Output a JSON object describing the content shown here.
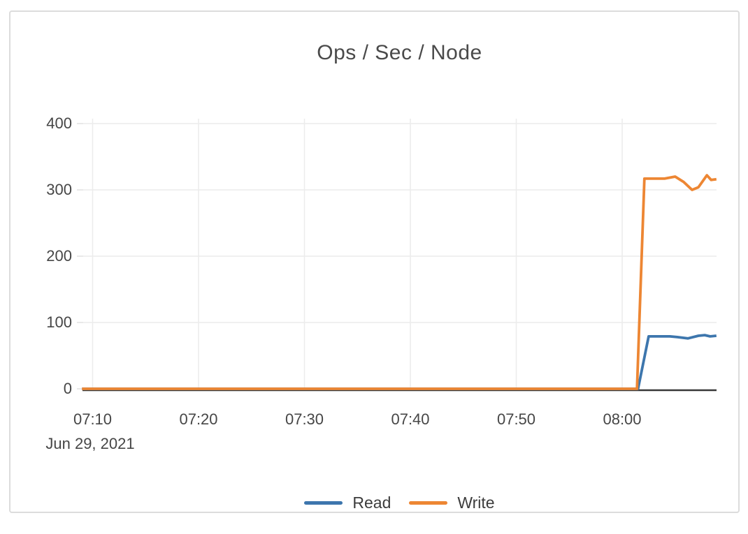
{
  "chart": {
    "title": "Ops / Sec / Node"
  },
  "chart_data": {
    "type": "line",
    "title": "Ops / Sec / Node",
    "x_axis": {
      "unit": "minutes since 07:00",
      "date_label": "Jun 29, 2021",
      "ticks": [
        {
          "t": 10,
          "label": "07:10"
        },
        {
          "t": 20,
          "label": "07:20"
        },
        {
          "t": 30,
          "label": "07:30"
        },
        {
          "t": 40,
          "label": "07:40"
        },
        {
          "t": 50,
          "label": "07:50"
        },
        {
          "t": 60,
          "label": "08:00"
        }
      ],
      "range": [
        9,
        69
      ]
    },
    "y_axis": {
      "ticks": [
        0,
        100,
        200,
        300,
        400
      ],
      "range": [
        0,
        400
      ],
      "grid": true
    },
    "legend_position": "bottom-center",
    "series": [
      {
        "name": "Read",
        "color": "#3D76AD",
        "points": [
          [
            9,
            0
          ],
          [
            20,
            0
          ],
          [
            30,
            0
          ],
          [
            40,
            0
          ],
          [
            50,
            0
          ],
          [
            61.5,
            0
          ],
          [
            62.5,
            79
          ],
          [
            64.5,
            79
          ],
          [
            65.2,
            78
          ],
          [
            66.2,
            76
          ],
          [
            67.2,
            80
          ],
          [
            67.8,
            81
          ],
          [
            68.3,
            79
          ],
          [
            68.9,
            80
          ]
        ]
      },
      {
        "name": "Write",
        "color": "#ED8633",
        "points": [
          [
            9,
            0
          ],
          [
            20,
            0
          ],
          [
            30,
            0
          ],
          [
            40,
            0
          ],
          [
            50,
            0
          ],
          [
            61.4,
            0
          ],
          [
            62.1,
            317
          ],
          [
            64,
            317
          ],
          [
            65,
            320
          ],
          [
            65.8,
            312
          ],
          [
            66.6,
            300
          ],
          [
            67.2,
            304
          ],
          [
            68,
            322
          ],
          [
            68.4,
            315
          ],
          [
            68.9,
            316
          ]
        ]
      }
    ],
    "colors": {
      "grid": "#ECECEC",
      "tick_mark": "#E0E0E0",
      "axis_line": "#383838",
      "text": "#464646",
      "card_border": "#DCDCDC"
    }
  }
}
